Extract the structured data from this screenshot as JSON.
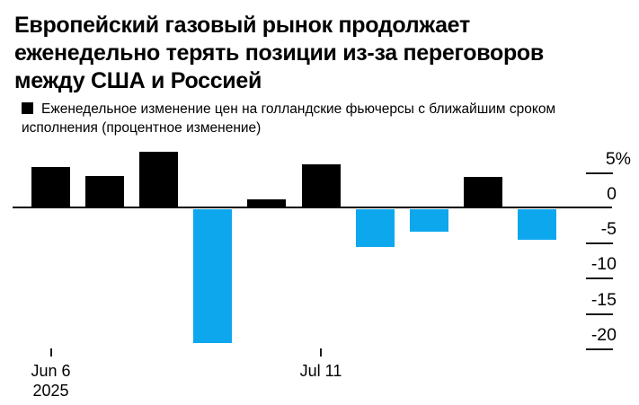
{
  "chart_data": {
    "type": "bar",
    "title_lines": [
      "Европейский газовый рынок продолжает",
      "еженедельно терять позиции из-за переговоров",
      "между США и Россией"
    ],
    "legend_label": "Еженедельное изменение цен на голландские фьючерсы с ближайшим сроком исполнения (процентное изменение)",
    "unit": "%",
    "values": [
      5.9,
      4.6,
      8.0,
      -19.0,
      1.3,
      6.2,
      -5.3,
      -3.2,
      4.5,
      -4.4
    ],
    "x_tick_labels": [
      {
        "bar_index": 0,
        "label": "Jun 6",
        "sublabel": "2025"
      },
      {
        "bar_index": 5,
        "label": "Jul 11",
        "sublabel": ""
      }
    ],
    "y_ticks": [
      {
        "value": 5,
        "label": "5%"
      },
      {
        "value": 0,
        "label": "0"
      },
      {
        "value": -5,
        "label": "-5"
      },
      {
        "value": -10,
        "label": "-10"
      },
      {
        "value": -15,
        "label": "-15"
      },
      {
        "value": -20,
        "label": "-20"
      }
    ],
    "ylim": [
      -21.5,
      9.5
    ],
    "grid": false,
    "legend_position": "top-left",
    "y_axis_position": "right",
    "positive_color": "#000000",
    "negative_color": "#0da7ee",
    "background": "#ffffff"
  }
}
